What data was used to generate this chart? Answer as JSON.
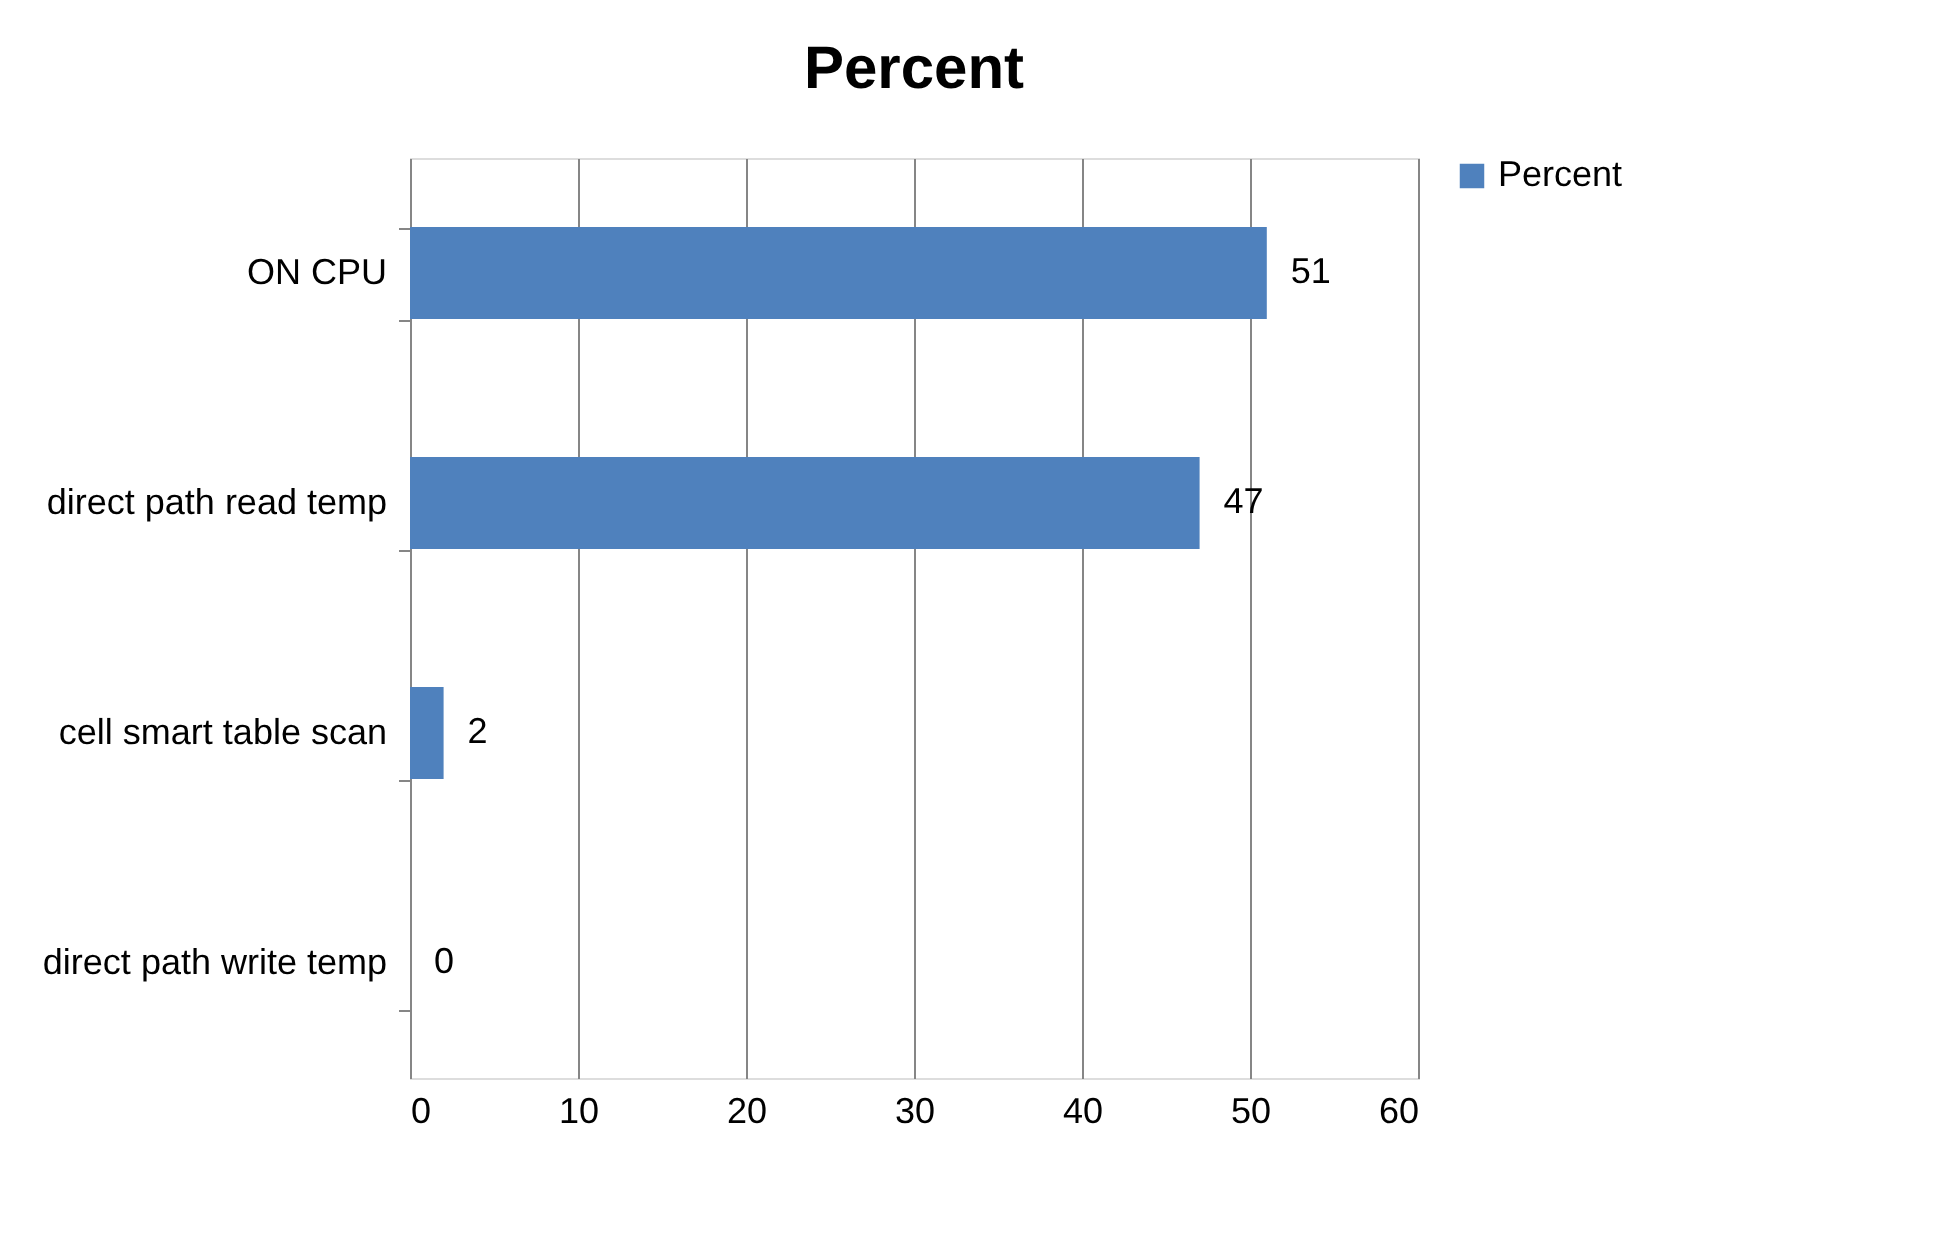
{
  "chart_data": {
    "type": "bar",
    "orientation": "horizontal",
    "title": "Percent",
    "categories": [
      "ON CPU",
      "direct path read temp",
      "cell smart table scan",
      "direct path write temp"
    ],
    "series": [
      {
        "name": "Percent",
        "color": "#4f81bd",
        "values": [
          51,
          47,
          2,
          0
        ]
      }
    ],
    "xlim": [
      0,
      60
    ],
    "xticks": [
      0,
      10,
      20,
      30,
      40,
      50,
      60
    ],
    "grid": "x",
    "legend": "right",
    "data_labels": true
  }
}
